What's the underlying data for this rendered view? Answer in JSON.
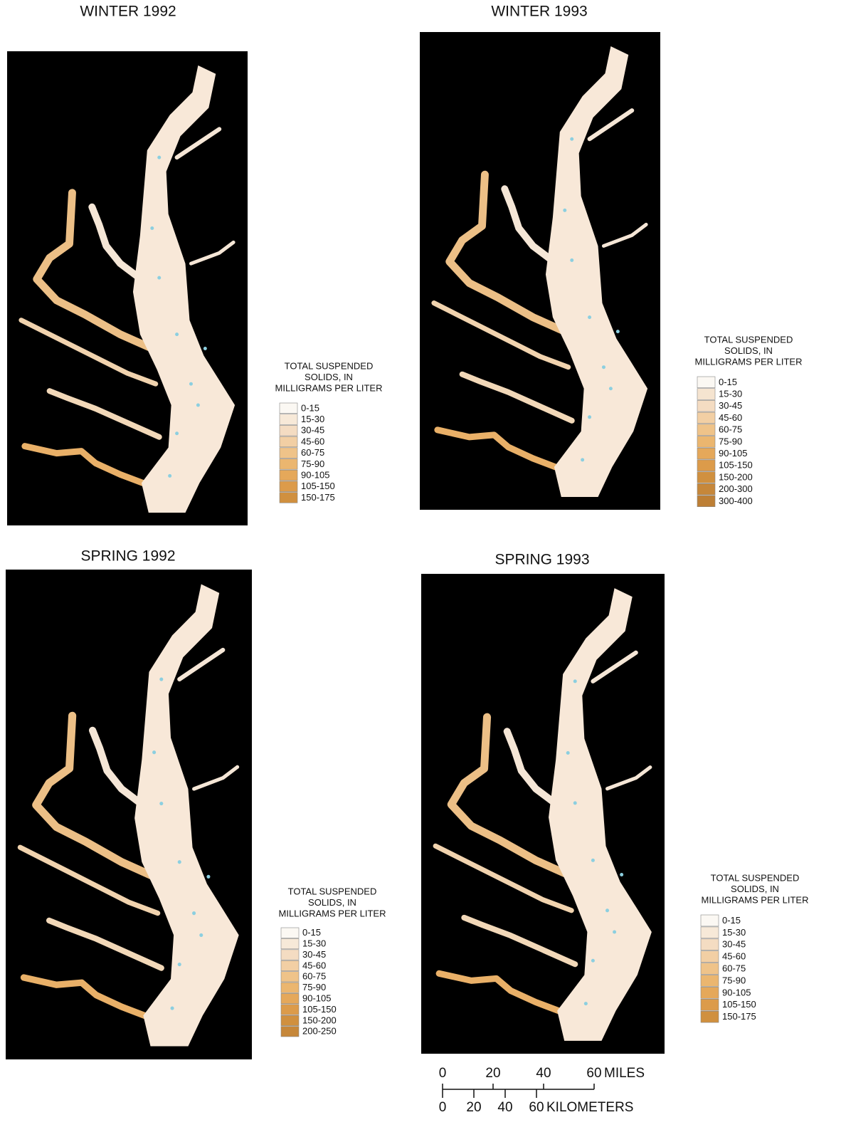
{
  "panels": [
    {
      "title": "WINTER 1992",
      "legend": {
        "title_lines": [
          "TOTAL SUSPENDED",
          "SOLIDS, IN",
          "MILLIGRAMS PER LITER"
        ],
        "items": [
          {
            "label": "0-15",
            "color": "#fbf8f3"
          },
          {
            "label": "15-30",
            "color": "#f7e9d8"
          },
          {
            "label": "30-45",
            "color": "#f4dcc2"
          },
          {
            "label": "45-60",
            "color": "#f2cfa4"
          },
          {
            "label": "60-75",
            "color": "#efc389"
          },
          {
            "label": "75-90",
            "color": "#ebb66f"
          },
          {
            "label": "90-105",
            "color": "#e5a85a"
          },
          {
            "label": "105-150",
            "color": "#dc9b4a"
          },
          {
            "label": "150-175",
            "color": "#d0903f"
          }
        ]
      }
    },
    {
      "title": "WINTER 1993",
      "legend": {
        "title_lines": [
          "TOTAL SUSPENDED",
          "SOLIDS, IN",
          "MILLIGRAMS PER LITER"
        ],
        "items": [
          {
            "label": "0-15",
            "color": "#fbf8f3"
          },
          {
            "label": "15-30",
            "color": "#f5e4d0"
          },
          {
            "label": "30-45",
            "color": "#f4dcc2"
          },
          {
            "label": "45-60",
            "color": "#f2cfa4"
          },
          {
            "label": "60-75",
            "color": "#efc389"
          },
          {
            "label": "75-90",
            "color": "#ebb66f"
          },
          {
            "label": "90-105",
            "color": "#e5a85a"
          },
          {
            "label": "105-150",
            "color": "#dc9b4a"
          },
          {
            "label": "150-200",
            "color": "#d0903f"
          },
          {
            "label": "200-300",
            "color": "#c6873a"
          },
          {
            "label": "300-400",
            "color": "#bd7f35"
          }
        ]
      }
    },
    {
      "title": "SPRING 1992",
      "legend": {
        "title_lines": [
          "TOTAL SUSPENDED",
          "SOLIDS, IN",
          "MILLIGRAMS PER LITER"
        ],
        "items": [
          {
            "label": "0-15",
            "color": "#fbf8f3"
          },
          {
            "label": "15-30",
            "color": "#f7e9d8"
          },
          {
            "label": "30-45",
            "color": "#f4dcc2"
          },
          {
            "label": "45-60",
            "color": "#f2cfa4"
          },
          {
            "label": "60-75",
            "color": "#efc389"
          },
          {
            "label": "75-90",
            "color": "#ebb66f"
          },
          {
            "label": "90-105",
            "color": "#e5a85a"
          },
          {
            "label": "105-150",
            "color": "#dc9b4a"
          },
          {
            "label": "150-200",
            "color": "#d0903f"
          },
          {
            "label": "200-250",
            "color": "#c6873a"
          }
        ]
      }
    },
    {
      "title": "SPRING 1993",
      "legend": {
        "title_lines": [
          "TOTAL SUSPENDED",
          "SOLIDS, IN",
          "MILLIGRAMS PER LITER"
        ],
        "items": [
          {
            "label": "0-15",
            "color": "#fbf8f3"
          },
          {
            "label": "15-30",
            "color": "#f7e9d8"
          },
          {
            "label": "30-45",
            "color": "#f4dcc2"
          },
          {
            "label": "45-60",
            "color": "#f2cfa4"
          },
          {
            "label": "60-75",
            "color": "#efc389"
          },
          {
            "label": "75-90",
            "color": "#ebb66f"
          },
          {
            "label": "90-105",
            "color": "#e5a85a"
          },
          {
            "label": "105-150",
            "color": "#dc9b4a"
          },
          {
            "label": "150-175",
            "color": "#d0903f"
          }
        ]
      }
    }
  ],
  "scale_bar": {
    "miles": {
      "ticks": [
        0,
        20,
        40,
        60
      ],
      "unit": "MILES"
    },
    "kilometers": {
      "ticks": [
        0,
        20,
        40,
        60
      ],
      "unit": "KILOMETERS"
    }
  }
}
